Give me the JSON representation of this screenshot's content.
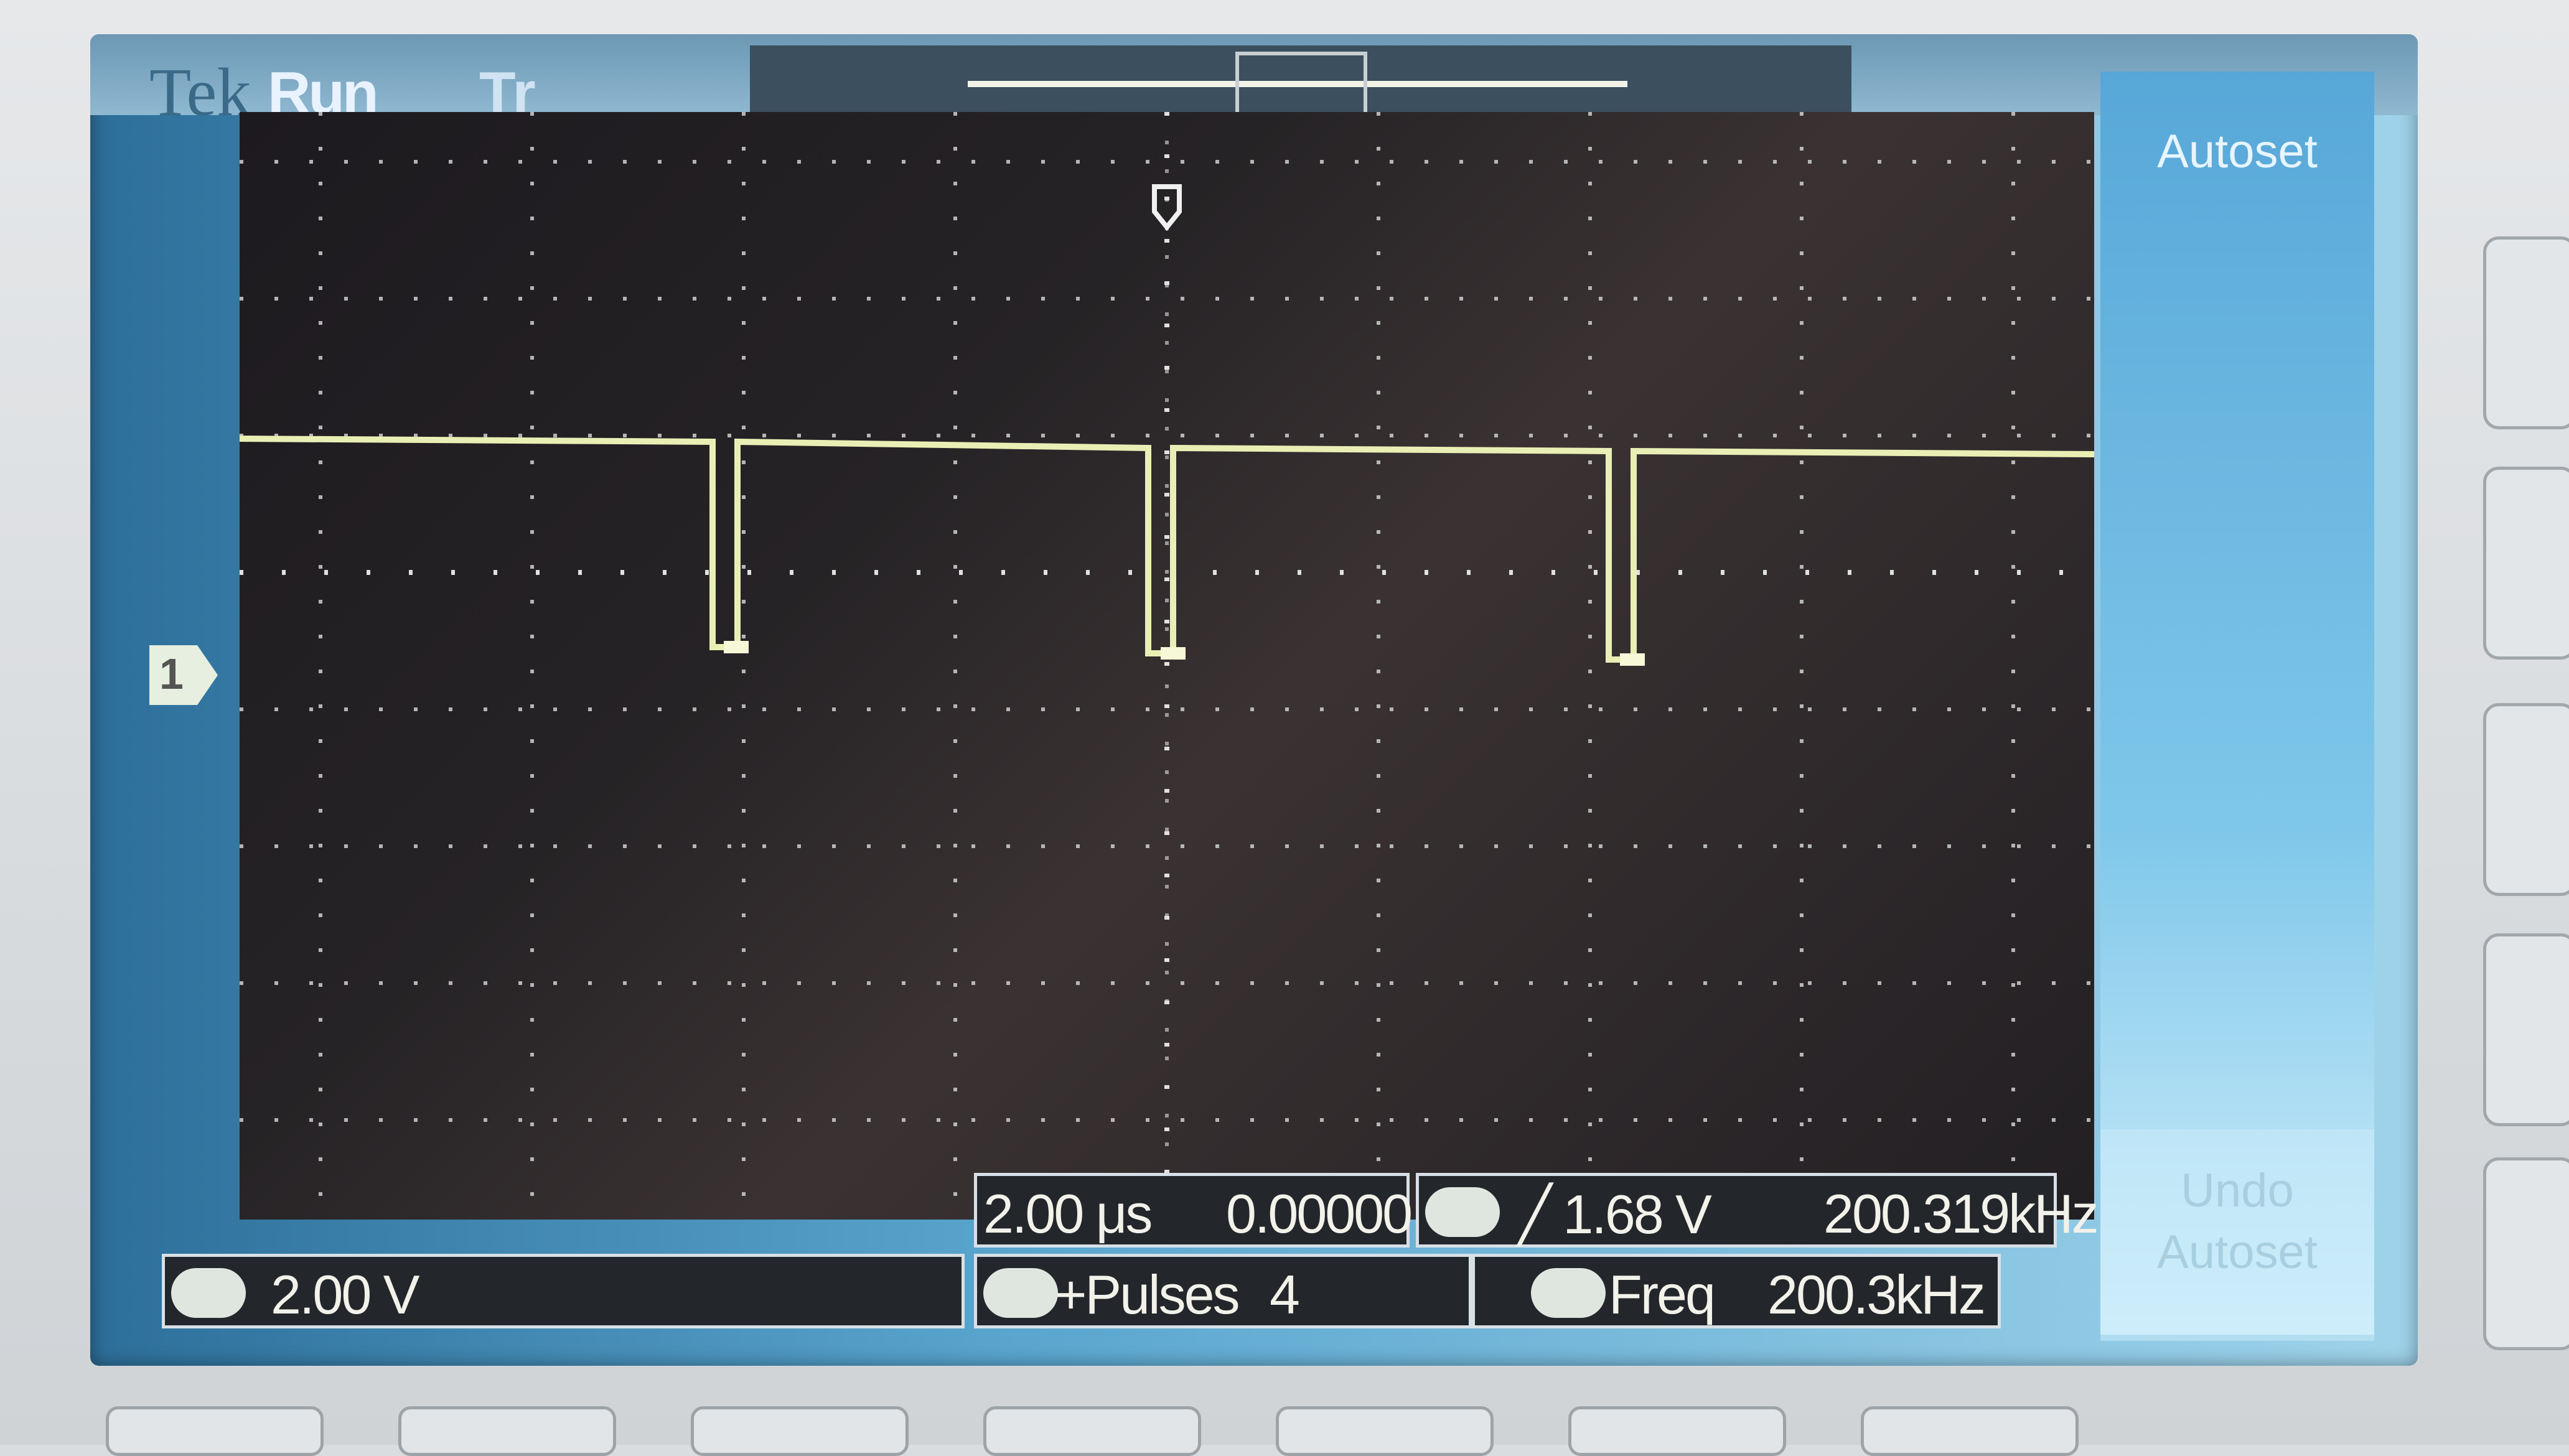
{
  "header": {
    "brand": "Tek",
    "acq_state": "Run",
    "trigger_status": "Tr"
  },
  "side_menu": {
    "autoset_label": "Autoset",
    "undo_label": "Undo Autoset"
  },
  "channel_marker": "1",
  "channel1": {
    "scale": "2.00 V"
  },
  "timebase": {
    "scale": "2.00 μs",
    "position": "0.00000 s"
  },
  "trigger": {
    "level": "╱ 1.68 V",
    "frequency": "200.319kHz"
  },
  "measurements": [
    {
      "name": "+Pulses",
      "value": "4"
    },
    {
      "name": "Freq",
      "value": "200.3kHz"
    }
  ],
  "colors": {
    "trace": "#e9efb4",
    "graticule": "#c9c9c9",
    "screen_bg": "#242125"
  }
}
